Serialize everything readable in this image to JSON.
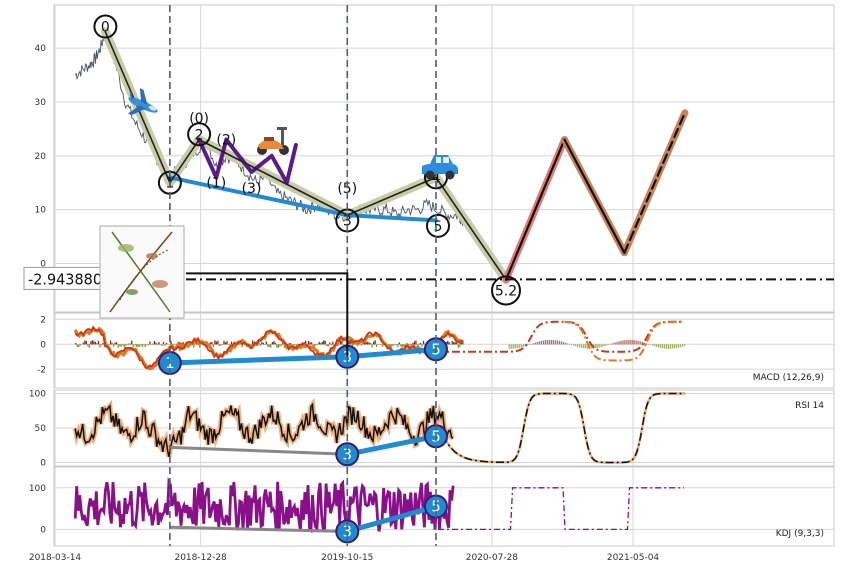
{
  "chart_data": {
    "type": "line",
    "x_ticks": [
      "2018-03-14",
      "2018-12-28",
      "2019-10-15",
      "2020-07-28",
      "2021-05-04"
    ],
    "x_tick_days": [
      0,
      289,
      580,
      867,
      1147
    ],
    "x_range_days": [
      0,
      1150
    ],
    "price_panel": {
      "ylim": [
        -9,
        48
      ],
      "y_ticks": [
        0,
        10,
        20,
        30,
        40
      ],
      "price_series": {
        "x_days": [
          40,
          55,
          70,
          80,
          90,
          100,
          120,
          140,
          160,
          180,
          200,
          220,
          240,
          260,
          280,
          300,
          320,
          340,
          360,
          380,
          400,
          420,
          440,
          460,
          480,
          500,
          520,
          540,
          560,
          580,
          600,
          620,
          640,
          660,
          680,
          700,
          720,
          740,
          760,
          780,
          800,
          810
        ],
        "y_values": [
          35,
          36,
          37,
          38,
          40,
          43,
          37,
          30,
          26,
          23,
          20,
          16,
          17,
          19,
          21,
          23,
          18,
          20,
          19,
          17,
          15,
          16,
          13,
          12,
          11,
          10,
          11,
          10,
          9,
          9,
          10,
          10,
          10,
          10,
          9,
          10,
          10,
          11,
          10,
          9,
          9,
          8
        ]
      },
      "wave_primary": {
        "x_days": [
          100,
          228,
          286,
          580,
          756,
          895
        ],
        "y_values": [
          43,
          15,
          23,
          9,
          16,
          -3
        ]
      },
      "wave_minor": {
        "x_days": [
          286,
          320,
          340,
          390,
          430,
          460,
          478
        ],
        "y_values": [
          23,
          16,
          23,
          17,
          20,
          15,
          22
        ]
      },
      "wave_blue": {
        "x_days": [
          228,
          580,
          756
        ],
        "y_values": [
          16,
          9,
          8
        ]
      },
      "projection_red": {
        "x_days": [
          895,
          1011
        ],
        "y_values": [
          -3,
          23
        ]
      },
      "projection_brown": {
        "x_days": [
          1011,
          1130,
          1250
        ],
        "y_values": [
          23,
          2,
          28
        ]
      },
      "projection_black_dashed": {
        "x_days": [
          1130,
          1250
        ],
        "y_values": [
          2,
          28
        ]
      },
      "horizontal_line_value": -2.94388,
      "horizontal_line_label": "-2.943880",
      "vertical_dashed_days": [
        228,
        580,
        756
      ],
      "wave_labels": [
        {
          "text": "0",
          "x": 100,
          "y": 44,
          "circled": true
        },
        {
          "text": "(0)",
          "x": 286,
          "y": 27,
          "circled": false
        },
        {
          "text": "2",
          "x": 286,
          "y": 24,
          "circled": true
        },
        {
          "text": "(2)",
          "x": 340,
          "y": 23,
          "circled": false
        },
        {
          "text": "1",
          "x": 228,
          "y": 15,
          "circled": true
        },
        {
          "text": "(1)",
          "x": 320,
          "y": 15,
          "circled": false
        },
        {
          "text": "(3)",
          "x": 390,
          "y": 14,
          "circled": false
        },
        {
          "text": "(5)",
          "x": 580,
          "y": 14,
          "circled": false
        },
        {
          "text": "3",
          "x": 580,
          "y": 8,
          "circled": true
        },
        {
          "text": "4",
          "x": 756,
          "y": 16,
          "circled": true
        },
        {
          "text": "5",
          "x": 760,
          "y": 7,
          "circled": true
        },
        {
          "text": "5.2",
          "x": 895,
          "y": -5,
          "circled": true
        }
      ],
      "icons": [
        "airplane-icon",
        "scooter-icon",
        "car-icon",
        "plant-sketch-icon"
      ]
    },
    "macd_panel": {
      "label": "MACD (12,26,9)",
      "ylim": [
        -3.5,
        2.5
      ],
      "y_ticks": [
        2,
        0,
        -2
      ],
      "markers": [
        {
          "text": "1",
          "x": 228,
          "y": -1.5
        },
        {
          "text": "3",
          "x": 580,
          "y": -1.0
        },
        {
          "text": "5",
          "x": 756,
          "y": -0.4
        }
      ],
      "projection_high": 1.8,
      "projection_low": -1.3
    },
    "rsi_panel": {
      "label": "RSI 14",
      "ylim": [
        -5,
        105
      ],
      "y_ticks": [
        100,
        50,
        0
      ],
      "markers": [
        {
          "text": "3",
          "x": 580,
          "y": 12
        },
        {
          "text": "5",
          "x": 756,
          "y": 38
        }
      ],
      "projection_high": 100,
      "projection_low": 0
    },
    "kdj_panel": {
      "label": "KDJ (9,3,3)",
      "ylim": [
        -40,
        150
      ],
      "y_ticks": [
        100,
        0
      ],
      "markers": [
        {
          "text": "3",
          "x": 580,
          "y": -5
        },
        {
          "text": "5",
          "x": 756,
          "y": 55
        }
      ],
      "projection_high": 100,
      "projection_low": 0
    }
  },
  "colors": {
    "grid": "#d6d6d6",
    "price": "#4a5266",
    "wave_shadow": "#c8cca8",
    "wave": "#222222",
    "minor_wave": "#5a1a8a",
    "blue_wave": "#1f8bd0",
    "projection_red": "#e07878",
    "projection_brown": "#c8825a",
    "macd_fast": "#c83a1a",
    "macd_slow": "#e07a20",
    "rsi_glow": "#f0b080",
    "kdj": "#8a108a",
    "vline": "#48607a"
  }
}
